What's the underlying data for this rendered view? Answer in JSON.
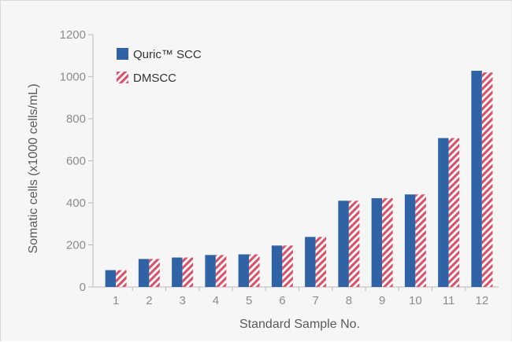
{
  "chart_data": {
    "type": "bar",
    "title": "",
    "xlabel": "Standard Sample No.",
    "ylabel": "Somatic cells (x1000 cells/mL)",
    "ylim": [
      0,
      1200
    ],
    "yticks": [
      0,
      200,
      400,
      600,
      800,
      1000,
      1200
    ],
    "categories": [
      "1",
      "2",
      "3",
      "4",
      "5",
      "6",
      "7",
      "8",
      "9",
      "10",
      "11",
      "12"
    ],
    "series": [
      {
        "name": "Quric™ SCC",
        "color": "#2f63a6",
        "pattern": "solid",
        "values": [
          80,
          133,
          140,
          152,
          155,
          197,
          238,
          410,
          422,
          440,
          708,
          1028
        ]
      },
      {
        "name": "DMSCC",
        "color": "#d9536b",
        "pattern": "diagonal-stripes",
        "values": [
          80,
          133,
          140,
          152,
          155,
          197,
          238,
          410,
          422,
          440,
          708,
          1020
        ]
      }
    ],
    "legend_position": "top-left",
    "grid": false
  }
}
